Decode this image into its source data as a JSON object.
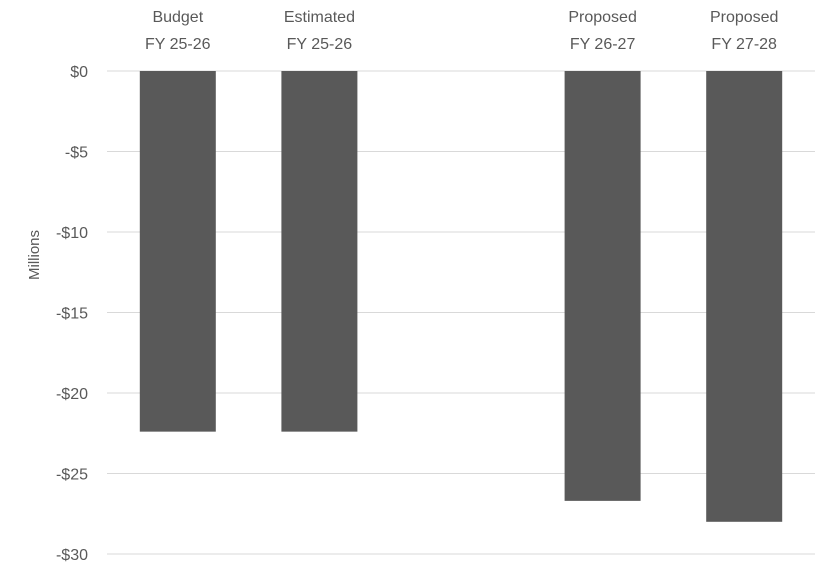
{
  "chart_data": {
    "type": "bar",
    "categories": [
      [
        "Budget",
        "FY 25-26"
      ],
      [
        "Estimated",
        "FY 25-26"
      ],
      [
        "",
        ""
      ],
      [
        "Proposed",
        "FY 26-27"
      ],
      [
        "Proposed",
        "FY 27-28"
      ]
    ],
    "values": [
      -22.4,
      -22.4,
      null,
      -26.7,
      -28.0
    ],
    "ylabel": "Millions",
    "ylim": [
      -30,
      0
    ],
    "yticks": [
      0,
      -5,
      -10,
      -15,
      -20,
      -25,
      -30
    ],
    "ytick_labels": [
      "$0",
      "-$5",
      "-$10",
      "-$15",
      "-$20",
      "-$25",
      "-$30"
    ],
    "bar_color": "#595959",
    "grid": true,
    "legend": "none"
  }
}
